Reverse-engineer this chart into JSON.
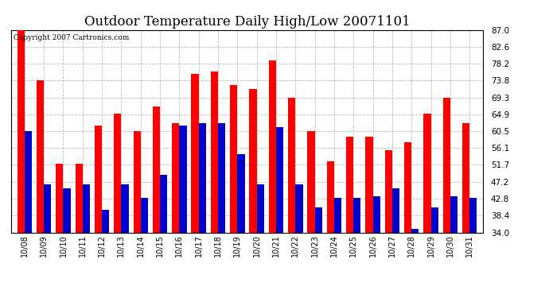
{
  "title": "Outdoor Temperature Daily High/Low 20071101",
  "copyright_text": "Copyright 2007 Cartronics.com",
  "categories": [
    "10/08",
    "10/09",
    "10/10",
    "10/11",
    "10/12",
    "10/13",
    "10/14",
    "10/15",
    "10/16",
    "10/17",
    "10/18",
    "10/19",
    "10/20",
    "10/21",
    "10/22",
    "10/23",
    "10/24",
    "10/25",
    "10/26",
    "10/27",
    "10/28",
    "10/29",
    "10/30",
    "10/31"
  ],
  "highs": [
    87.0,
    73.8,
    52.0,
    52.0,
    62.0,
    65.0,
    60.5,
    67.0,
    62.5,
    75.5,
    76.0,
    72.5,
    71.5,
    79.0,
    69.3,
    60.5,
    52.5,
    59.0,
    59.0,
    55.5,
    57.5,
    65.0,
    69.3,
    62.5
  ],
  "lows": [
    60.5,
    46.5,
    45.5,
    46.5,
    40.0,
    46.5,
    43.0,
    49.0,
    62.0,
    62.5,
    62.5,
    54.5,
    46.5,
    61.5,
    46.5,
    40.5,
    43.0,
    43.0,
    43.5,
    45.5,
    35.0,
    40.5,
    43.5,
    43.0
  ],
  "high_color": "#ff0000",
  "low_color": "#0000cc",
  "ylim": [
    34.0,
    87.0
  ],
  "yticks": [
    34.0,
    38.4,
    42.8,
    47.2,
    51.7,
    56.1,
    60.5,
    64.9,
    69.3,
    73.8,
    78.2,
    82.6,
    87.0
  ],
  "background_color": "#ffffff",
  "plot_bg_color": "#ffffff",
  "grid_color": "#bbbbbb",
  "bar_width": 0.38,
  "title_fontsize": 12,
  "figwidth": 6.9,
  "figheight": 3.75,
  "dpi": 100
}
